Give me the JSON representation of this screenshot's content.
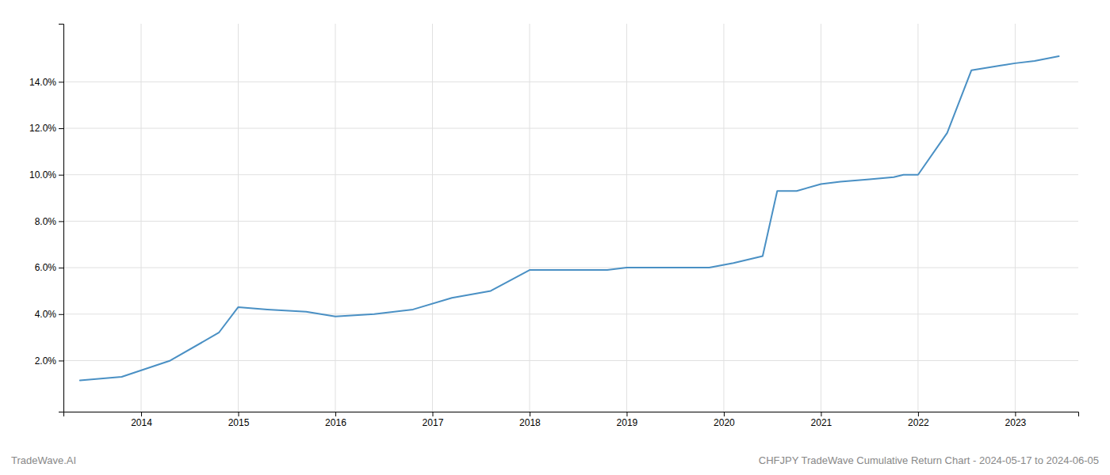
{
  "chart_data": {
    "type": "line",
    "title": "CHFJPY TradeWave Cumulative Return Chart - 2024-05-17 to 2024-06-05",
    "annotations": [
      "TradeWave.AI"
    ],
    "x": [
      2013.37,
      2013.8,
      2014.3,
      2014.8,
      2015.0,
      2015.3,
      2015.7,
      2016.0,
      2016.4,
      2016.8,
      2017.2,
      2017.6,
      2018.0,
      2018.2,
      2018.5,
      2018.8,
      2019.0,
      2019.2,
      2019.35,
      2019.6,
      2019.75,
      2019.85,
      2020.1,
      2020.4,
      2020.55,
      2020.75,
      2021.0,
      2021.2,
      2021.5,
      2021.75,
      2021.85,
      2022.0,
      2022.3,
      2022.55,
      2022.7,
      2022.85,
      2023.0,
      2023.2,
      2023.45
    ],
    "values": [
      0.0115,
      0.013,
      0.02,
      0.032,
      0.043,
      0.042,
      0.041,
      0.039,
      0.04,
      0.042,
      0.047,
      0.05,
      0.059,
      0.059,
      0.059,
      0.059,
      0.06,
      0.06,
      0.06,
      0.06,
      0.06,
      0.06,
      0.062,
      0.065,
      0.093,
      0.093,
      0.096,
      0.097,
      0.098,
      0.099,
      0.1,
      0.1,
      0.118,
      0.145,
      0.146,
      0.147,
      0.148,
      0.149,
      0.151
    ],
    "color": "#4a90c4",
    "xlim": [
      2013.2,
      2023.65
    ],
    "ylim": [
      -0.002,
      0.165
    ],
    "xticks": [
      2014,
      2015,
      2016,
      2017,
      2018,
      2019,
      2020,
      2021,
      2022,
      2023
    ],
    "yticks": [
      {
        "value": 0.02,
        "label": "2.0%"
      },
      {
        "value": 0.04,
        "label": "4.0%"
      },
      {
        "value": 0.06,
        "label": "6.0%"
      },
      {
        "value": 0.08,
        "label": "8.0%"
      },
      {
        "value": 0.1,
        "label": "10.0%"
      },
      {
        "value": 0.12,
        "label": "12.0%"
      },
      {
        "value": 0.14,
        "label": "14.0%"
      }
    ],
    "grid": true
  }
}
